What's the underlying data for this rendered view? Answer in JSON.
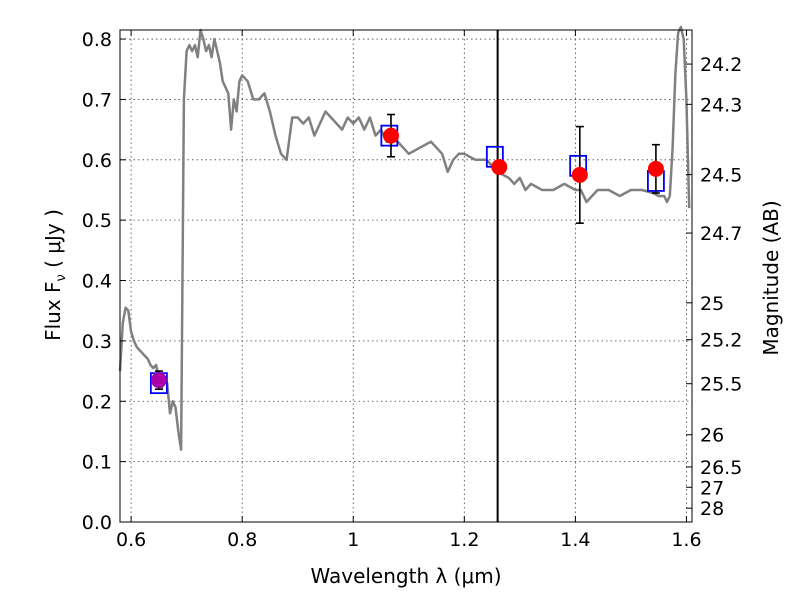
{
  "chart_data": {
    "type": "line",
    "xlabel": "Wavelength  λ (μm)",
    "ylabel": "Flux  F",
    "ylabel_sub": "ν",
    "ylabel_unit": " ( μJy )",
    "y2label": "Magnitude (AB)",
    "xlim": [
      0.58,
      1.61
    ],
    "ylim": [
      0.0,
      0.815
    ],
    "grid": true,
    "x_ticks": [
      0.6,
      0.8,
      1.0,
      1.2,
      1.4,
      1.6
    ],
    "x_tick_labels": [
      "0.6",
      "0.8",
      "1",
      "1.2",
      "1.4",
      "1.6"
    ],
    "y_ticks": [
      0.0,
      0.1,
      0.2,
      0.3,
      0.4,
      0.5,
      0.6,
      0.7,
      0.8
    ],
    "y_tick_labels": [
      "0.0",
      "0.1",
      "0.2",
      "0.3",
      "0.4",
      "0.5",
      "0.6",
      "0.7",
      "0.8"
    ],
    "mag_ticks": [
      24.2,
      24.3,
      24.5,
      24.7,
      25,
      25.2,
      25.5,
      26,
      26.5,
      27,
      28
    ],
    "mag_tick_labels": [
      "24.2",
      "24.3",
      "24.5",
      "24.7",
      "25",
      "25.2",
      "25.5",
      "26",
      "26.5",
      "27",
      "28"
    ],
    "vertical_line_x": 1.26,
    "colors": {
      "template": "#808080",
      "model_box": "#0000ff",
      "observed": "#ff0000",
      "errorbar": "#000000",
      "first_point": "#aa00aa",
      "vline": "#000000"
    },
    "series": [
      {
        "role": "template-spectrum",
        "x": [
          0.58,
          0.585,
          0.59,
          0.595,
          0.6,
          0.605,
          0.61,
          0.615,
          0.62,
          0.625,
          0.63,
          0.635,
          0.64,
          0.645,
          0.65,
          0.655,
          0.66,
          0.665,
          0.67,
          0.675,
          0.68,
          0.685,
          0.69,
          0.695,
          0.7,
          0.705,
          0.71,
          0.715,
          0.72,
          0.725,
          0.73,
          0.735,
          0.74,
          0.745,
          0.75,
          0.755,
          0.76,
          0.765,
          0.77,
          0.775,
          0.78,
          0.785,
          0.79,
          0.795,
          0.8,
          0.81,
          0.82,
          0.83,
          0.84,
          0.85,
          0.86,
          0.87,
          0.88,
          0.89,
          0.9,
          0.91,
          0.92,
          0.93,
          0.94,
          0.95,
          0.96,
          0.97,
          0.98,
          0.99,
          1.0,
          1.01,
          1.02,
          1.03,
          1.04,
          1.05,
          1.06,
          1.07,
          1.08,
          1.09,
          1.1,
          1.12,
          1.14,
          1.16,
          1.17,
          1.18,
          1.19,
          1.2,
          1.22,
          1.24,
          1.26,
          1.28,
          1.29,
          1.3,
          1.31,
          1.32,
          1.34,
          1.36,
          1.38,
          1.4,
          1.41,
          1.42,
          1.44,
          1.46,
          1.48,
          1.5,
          1.52,
          1.54,
          1.55,
          1.56,
          1.565,
          1.57,
          1.575,
          1.58,
          1.585,
          1.59,
          1.595,
          1.6,
          1.605
        ],
        "y": [
          0.25,
          0.33,
          0.355,
          0.35,
          0.315,
          0.3,
          0.29,
          0.285,
          0.28,
          0.275,
          0.27,
          0.26,
          0.255,
          0.26,
          0.24,
          0.22,
          0.24,
          0.23,
          0.18,
          0.2,
          0.19,
          0.15,
          0.12,
          0.7,
          0.78,
          0.79,
          0.78,
          0.79,
          0.77,
          0.815,
          0.8,
          0.78,
          0.79,
          0.77,
          0.8,
          0.78,
          0.76,
          0.73,
          0.72,
          0.71,
          0.65,
          0.7,
          0.68,
          0.73,
          0.74,
          0.73,
          0.7,
          0.7,
          0.71,
          0.68,
          0.64,
          0.61,
          0.6,
          0.67,
          0.67,
          0.66,
          0.67,
          0.64,
          0.66,
          0.68,
          0.67,
          0.66,
          0.65,
          0.67,
          0.66,
          0.67,
          0.65,
          0.67,
          0.64,
          0.65,
          0.63,
          0.64,
          0.63,
          0.62,
          0.61,
          0.62,
          0.63,
          0.61,
          0.58,
          0.6,
          0.61,
          0.61,
          0.6,
          0.6,
          0.58,
          0.57,
          0.56,
          0.57,
          0.55,
          0.56,
          0.55,
          0.55,
          0.56,
          0.55,
          0.55,
          0.53,
          0.55,
          0.55,
          0.54,
          0.55,
          0.55,
          0.545,
          0.54,
          0.54,
          0.53,
          0.54,
          0.62,
          0.74,
          0.81,
          0.82,
          0.8,
          0.7,
          0.52
        ]
      },
      {
        "role": "model-boxes",
        "x": [
          0.65,
          1.065,
          1.255,
          1.405,
          1.545
        ],
        "y": [
          0.23,
          0.64,
          0.605,
          0.59,
          0.565
        ]
      },
      {
        "role": "observed-points",
        "x": [
          0.65,
          1.068,
          1.263,
          1.408,
          1.545
        ],
        "y": [
          0.235,
          0.64,
          0.588,
          0.575,
          0.585
        ],
        "err": [
          0.015,
          0.035,
          0.0,
          0.08,
          0.04
        ]
      }
    ]
  }
}
